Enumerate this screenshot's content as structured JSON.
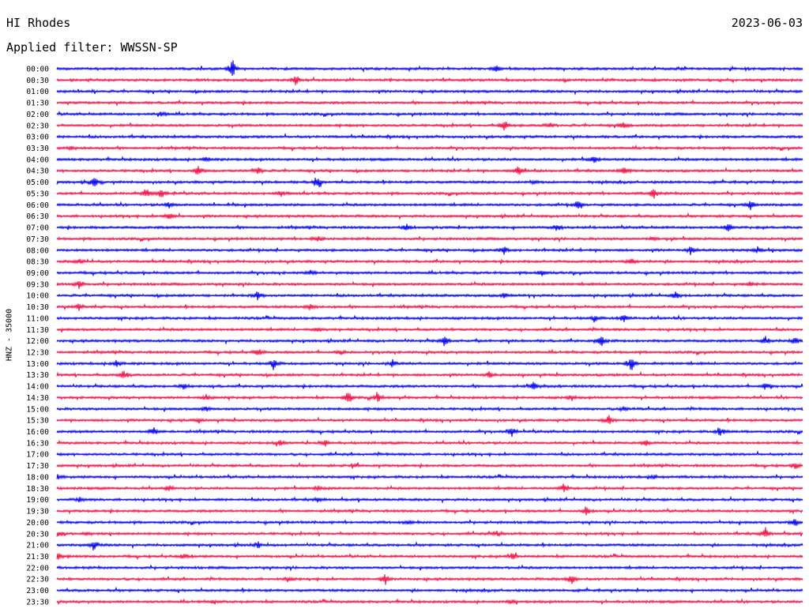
{
  "header": {
    "station": "HI Rhodes",
    "date": "2023-06-03",
    "filter": "Applied filter: WWSSN-SP"
  },
  "chart_data": {
    "type": "line",
    "title": "HI Rhodes",
    "ylabel": "HNZ - 35000",
    "colors": [
      "#0000ee",
      "#ee1144"
    ],
    "rows": [
      {
        "label": "00:00",
        "bursts": [
          [
            0.235,
            14
          ],
          [
            0.59,
            6
          ]
        ]
      },
      {
        "label": "00:30",
        "bursts": [
          [
            0.32,
            10
          ]
        ]
      },
      {
        "label": "01:00",
        "bursts": []
      },
      {
        "label": "01:30",
        "bursts": []
      },
      {
        "label": "02:00",
        "bursts": [
          [
            0.14,
            3
          ]
        ]
      },
      {
        "label": "02:30",
        "bursts": [
          [
            0.6,
            10
          ],
          [
            0.76,
            7
          ],
          [
            0.66,
            4
          ]
        ]
      },
      {
        "label": "03:00",
        "bursts": []
      },
      {
        "label": "03:30",
        "bursts": [
          [
            0.02,
            3
          ]
        ]
      },
      {
        "label": "04:00",
        "bursts": [
          [
            0.72,
            6
          ],
          [
            0.2,
            3
          ]
        ]
      },
      {
        "label": "04:30",
        "bursts": [
          [
            0.19,
            9
          ],
          [
            0.62,
            10
          ],
          [
            0.76,
            7
          ],
          [
            0.27,
            5
          ]
        ]
      },
      {
        "label": "05:00",
        "bursts": [
          [
            0.35,
            10
          ],
          [
            0.05,
            9
          ],
          [
            0.64,
            4
          ]
        ]
      },
      {
        "label": "05:30",
        "bursts": [
          [
            0.12,
            9
          ],
          [
            0.14,
            8
          ],
          [
            0.8,
            9
          ],
          [
            0.3,
            4
          ]
        ]
      },
      {
        "label": "06:00",
        "bursts": [
          [
            0.7,
            8
          ],
          [
            0.93,
            9
          ],
          [
            0.15,
            5
          ]
        ]
      },
      {
        "label": "06:30",
        "bursts": [
          [
            0.15,
            7
          ]
        ]
      },
      {
        "label": "07:00",
        "bursts": [
          [
            0.47,
            6
          ],
          [
            0.9,
            7
          ],
          [
            0.67,
            5
          ]
        ]
      },
      {
        "label": "07:30",
        "bursts": [
          [
            0.35,
            4
          ],
          [
            0.8,
            3
          ]
        ]
      },
      {
        "label": "08:00",
        "bursts": [
          [
            0.6,
            6
          ],
          [
            0.85,
            7
          ],
          [
            0.94,
            5
          ]
        ]
      },
      {
        "label": "08:30",
        "bursts": [
          [
            0.03,
            4
          ],
          [
            0.77,
            6
          ]
        ]
      },
      {
        "label": "09:00",
        "bursts": [
          [
            0.65,
            5
          ],
          [
            0.34,
            3
          ]
        ]
      },
      {
        "label": "09:30",
        "bursts": [
          [
            0.03,
            7
          ],
          [
            0.93,
            4
          ]
        ]
      },
      {
        "label": "10:00",
        "bursts": [
          [
            0.27,
            8
          ],
          [
            0.83,
            6
          ],
          [
            0.6,
            3
          ]
        ]
      },
      {
        "label": "10:30",
        "bursts": [
          [
            0.34,
            7
          ],
          [
            0.03,
            5
          ]
        ]
      },
      {
        "label": "11:00",
        "bursts": [
          [
            0.72,
            4
          ],
          [
            0.76,
            5
          ]
        ]
      },
      {
        "label": "11:30",
        "bursts": [
          [
            0.35,
            4
          ]
        ]
      },
      {
        "label": "12:00",
        "bursts": [
          [
            0.52,
            9
          ],
          [
            0.73,
            9
          ],
          [
            0.95,
            7
          ],
          [
            0.99,
            7
          ]
        ]
      },
      {
        "label": "12:30",
        "bursts": [
          [
            0.27,
            6
          ],
          [
            0.38,
            4
          ]
        ]
      },
      {
        "label": "13:00",
        "bursts": [
          [
            0.08,
            6
          ],
          [
            0.29,
            8
          ],
          [
            0.77,
            11
          ],
          [
            0.45,
            5
          ]
        ]
      },
      {
        "label": "13:30",
        "bursts": [
          [
            0.09,
            7
          ],
          [
            0.58,
            5
          ]
        ]
      },
      {
        "label": "14:00",
        "bursts": [
          [
            0.17,
            4
          ],
          [
            0.64,
            6
          ],
          [
            0.95,
            6
          ]
        ]
      },
      {
        "label": "14:30",
        "bursts": [
          [
            0.39,
            10
          ],
          [
            0.43,
            8
          ],
          [
            0.2,
            4
          ],
          [
            0.69,
            5
          ]
        ]
      },
      {
        "label": "15:00",
        "bursts": [
          [
            0.2,
            4
          ],
          [
            0.76,
            5
          ]
        ]
      },
      {
        "label": "15:30",
        "bursts": [
          [
            0.19,
            4
          ],
          [
            0.74,
            7
          ]
        ]
      },
      {
        "label": "16:00",
        "bursts": [
          [
            0.13,
            8
          ],
          [
            0.61,
            8
          ],
          [
            0.89,
            8
          ]
        ]
      },
      {
        "label": "16:30",
        "bursts": [
          [
            0.3,
            5
          ],
          [
            0.36,
            4
          ],
          [
            0.79,
            5
          ]
        ]
      },
      {
        "label": "17:00",
        "bursts": []
      },
      {
        "label": "17:30",
        "bursts": [
          [
            0.99,
            6
          ],
          [
            0.4,
            3
          ]
        ]
      },
      {
        "label": "18:00",
        "bursts": [
          [
            0.0,
            4
          ],
          [
            0.8,
            3
          ]
        ]
      },
      {
        "label": "18:30",
        "bursts": [
          [
            0.15,
            6
          ],
          [
            0.68,
            7
          ],
          [
            0.35,
            4
          ]
        ]
      },
      {
        "label": "19:00",
        "bursts": [
          [
            0.35,
            4
          ],
          [
            0.03,
            3
          ]
        ]
      },
      {
        "label": "19:30",
        "bursts": [
          [
            0.71,
            6
          ]
        ]
      },
      {
        "label": "20:00",
        "bursts": [
          [
            0.99,
            7
          ],
          [
            0.47,
            4
          ]
        ]
      },
      {
        "label": "20:30",
        "bursts": [
          [
            0.0,
            6
          ],
          [
            0.59,
            6
          ],
          [
            0.95,
            9
          ],
          [
            0.04,
            3
          ]
        ]
      },
      {
        "label": "21:00",
        "bursts": [
          [
            0.05,
            8
          ],
          [
            0.27,
            5
          ]
        ]
      },
      {
        "label": "21:30",
        "bursts": [
          [
            0.0,
            9
          ],
          [
            0.61,
            6
          ],
          [
            0.17,
            4
          ]
        ]
      },
      {
        "label": "22:00",
        "bursts": []
      },
      {
        "label": "22:30",
        "bursts": [
          [
            0.44,
            8
          ],
          [
            0.69,
            8
          ],
          [
            0.31,
            4
          ]
        ]
      },
      {
        "label": "23:00",
        "bursts": []
      },
      {
        "label": "23:30",
        "bursts": [
          [
            0.21,
            3
          ],
          [
            0.61,
            3
          ]
        ]
      }
    ]
  }
}
